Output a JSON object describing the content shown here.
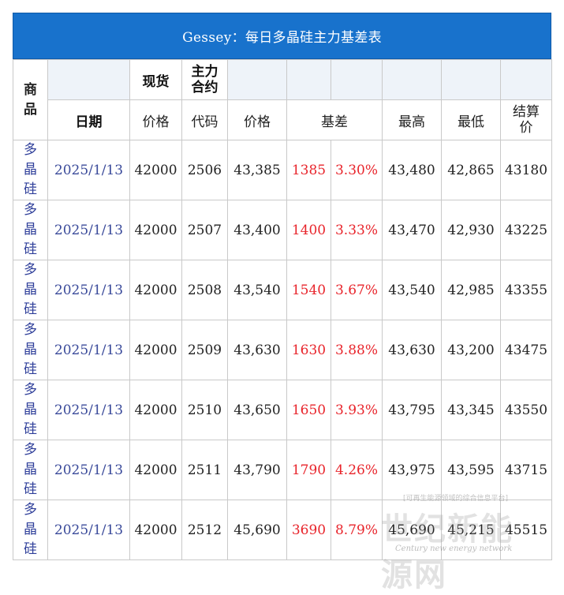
{
  "title": "Gessey：每日多晶硅主力基差表",
  "header": {
    "commodity": "商品",
    "spot": "现货",
    "main_contract": "主力合约",
    "date": "日期",
    "price_spot": "价格",
    "code": "代码",
    "price_fut": "价格",
    "basis": "基差",
    "high": "最高",
    "low": "最低",
    "settle": "结算价"
  },
  "rows": [
    {
      "commodity": "多晶硅",
      "date": "2025/1/13",
      "spot": "42000",
      "code": "2506",
      "price": "43,385",
      "basis": "1385",
      "basis_pct": "3.30%",
      "high": "43,480",
      "low": "42,865",
      "settle": "43180"
    },
    {
      "commodity": "多晶硅",
      "date": "2025/1/13",
      "spot": "42000",
      "code": "2507",
      "price": "43,400",
      "basis": "1400",
      "basis_pct": "3.33%",
      "high": "43,470",
      "low": "42,930",
      "settle": "43225"
    },
    {
      "commodity": "多晶硅",
      "date": "2025/1/13",
      "spot": "42000",
      "code": "2508",
      "price": "43,540",
      "basis": "1540",
      "basis_pct": "3.67%",
      "high": "43,540",
      "low": "42,985",
      "settle": "43355"
    },
    {
      "commodity": "多晶硅",
      "date": "2025/1/13",
      "spot": "42000",
      "code": "2509",
      "price": "43,630",
      "basis": "1630",
      "basis_pct": "3.88%",
      "high": "43,630",
      "low": "43,200",
      "settle": "43475"
    },
    {
      "commodity": "多晶硅",
      "date": "2025/1/13",
      "spot": "42000",
      "code": "2510",
      "price": "43,650",
      "basis": "1650",
      "basis_pct": "3.93%",
      "high": "43,795",
      "low": "43,345",
      "settle": "43550"
    },
    {
      "commodity": "多晶硅",
      "date": "2025/1/13",
      "spot": "42000",
      "code": "2511",
      "price": "43,790",
      "basis": "1790",
      "basis_pct": "4.26%",
      "high": "43,975",
      "low": "43,595",
      "settle": "43715"
    },
    {
      "commodity": "多晶硅",
      "date": "2025/1/13",
      "spot": "42000",
      "code": "2512",
      "price": "45,690",
      "basis": "3690",
      "basis_pct": "8.79%",
      "high": "45,690",
      "low": "45,215",
      "settle": "45515"
    }
  ],
  "watermark": {
    "big": "世纪新能源网",
    "small": "[可再生能源领域的综合信息平台]",
    "english": "Century new energy network"
  }
}
